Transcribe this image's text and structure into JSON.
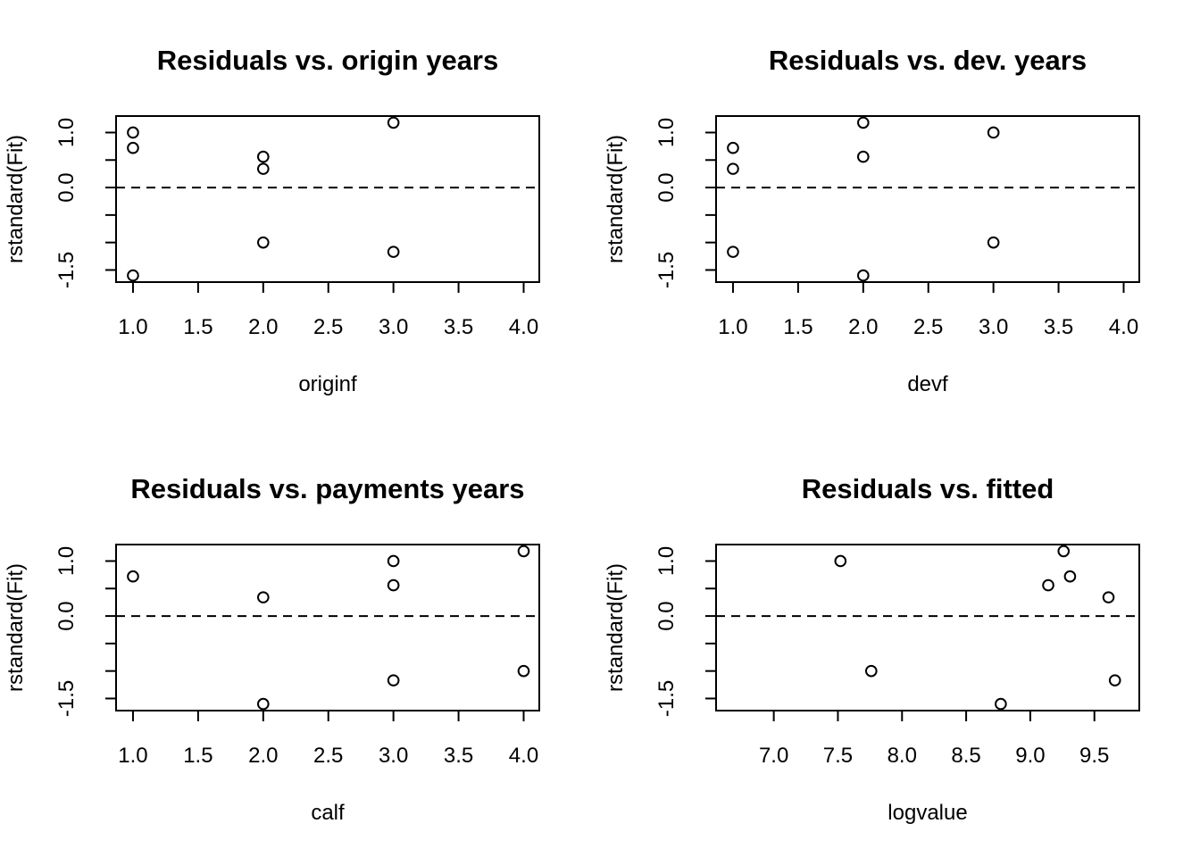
{
  "chart_data": [
    {
      "type": "scatter",
      "title": "Residuals vs. origin years",
      "xlabel": "originf",
      "ylabel": "rstandard(Fit)",
      "xlim": [
        0.87,
        4.12
      ],
      "ylim": [
        -1.72,
        1.3
      ],
      "xticks": [
        1.0,
        1.5,
        2.0,
        2.5,
        3.0,
        3.5,
        4.0
      ],
      "xtick_labels": [
        "1.0",
        "1.5",
        "2.0",
        "2.5",
        "3.0",
        "3.5",
        "4.0"
      ],
      "yticks": [
        -1.5,
        -1.0,
        -0.5,
        0.0,
        0.5,
        1.0
      ],
      "ytick_labels": [
        {
          "v": -1.5,
          "t": "-1.5"
        },
        {
          "v": 0.0,
          "t": "0.0"
        },
        {
          "v": 1.0,
          "t": "1.0"
        }
      ],
      "hline": 0.0,
      "x": [
        1,
        1,
        1,
        2,
        2,
        2,
        3,
        3
      ],
      "y": [
        1.0,
        0.72,
        -1.6,
        0.56,
        0.34,
        -1.0,
        1.18,
        -1.17
      ]
    },
    {
      "type": "scatter",
      "title": "Residuals vs. dev. years",
      "xlabel": "devf",
      "ylabel": "rstandard(Fit)",
      "xlim": [
        0.87,
        4.12
      ],
      "ylim": [
        -1.72,
        1.3
      ],
      "xticks": [
        1.0,
        1.5,
        2.0,
        2.5,
        3.0,
        3.5,
        4.0
      ],
      "xtick_labels": [
        "1.0",
        "1.5",
        "2.0",
        "2.5",
        "3.0",
        "3.5",
        "4.0"
      ],
      "yticks": [
        -1.5,
        -1.0,
        -0.5,
        0.0,
        0.5,
        1.0
      ],
      "ytick_labels": [
        {
          "v": -1.5,
          "t": "-1.5"
        },
        {
          "v": 0.0,
          "t": "0.0"
        },
        {
          "v": 1.0,
          "t": "1.0"
        }
      ],
      "hline": 0.0,
      "x": [
        1,
        1,
        1,
        2,
        2,
        2,
        3,
        3
      ],
      "y": [
        0.72,
        0.34,
        -1.17,
        1.18,
        0.56,
        -1.6,
        1.0,
        -1.0
      ]
    },
    {
      "type": "scatter",
      "title": "Residuals vs. payments years",
      "xlabel": "calf",
      "ylabel": "rstandard(Fit)",
      "xlim": [
        0.87,
        4.12
      ],
      "ylim": [
        -1.72,
        1.3
      ],
      "xticks": [
        1.0,
        1.5,
        2.0,
        2.5,
        3.0,
        3.5,
        4.0
      ],
      "xtick_labels": [
        "1.0",
        "1.5",
        "2.0",
        "2.5",
        "3.0",
        "3.5",
        "4.0"
      ],
      "yticks": [
        -1.5,
        -1.0,
        -0.5,
        0.0,
        0.5,
        1.0
      ],
      "ytick_labels": [
        {
          "v": -1.5,
          "t": "-1.5"
        },
        {
          "v": 0.0,
          "t": "0.0"
        },
        {
          "v": 1.0,
          "t": "1.0"
        }
      ],
      "hline": 0.0,
      "x": [
        1,
        2,
        2,
        3,
        3,
        3,
        4,
        4
      ],
      "y": [
        0.72,
        0.34,
        -1.6,
        1.0,
        0.56,
        -1.17,
        1.18,
        -1.0
      ]
    },
    {
      "type": "scatter",
      "title": "Residuals vs. fitted",
      "xlabel": "logvalue",
      "ylabel": "rstandard(Fit)",
      "xlim": [
        6.55,
        9.85
      ],
      "ylim": [
        -1.72,
        1.3
      ],
      "xticks": [
        7.0,
        7.5,
        8.0,
        8.5,
        9.0,
        9.5
      ],
      "xtick_labels": [
        "7.0",
        "7.5",
        "8.0",
        "8.5",
        "9.0",
        "9.5"
      ],
      "yticks": [
        -1.5,
        -1.0,
        -0.5,
        0.0,
        0.5,
        1.0
      ],
      "ytick_labels": [
        {
          "v": -1.5,
          "t": "-1.5"
        },
        {
          "v": 0.0,
          "t": "0.0"
        },
        {
          "v": 1.0,
          "t": "1.0"
        }
      ],
      "hline": 0.0,
      "x": [
        7.52,
        7.76,
        8.77,
        9.14,
        9.26,
        9.31,
        9.61,
        9.66
      ],
      "y": [
        1.0,
        -1.0,
        -1.6,
        0.56,
        1.18,
        0.72,
        0.34,
        -1.17
      ]
    }
  ]
}
